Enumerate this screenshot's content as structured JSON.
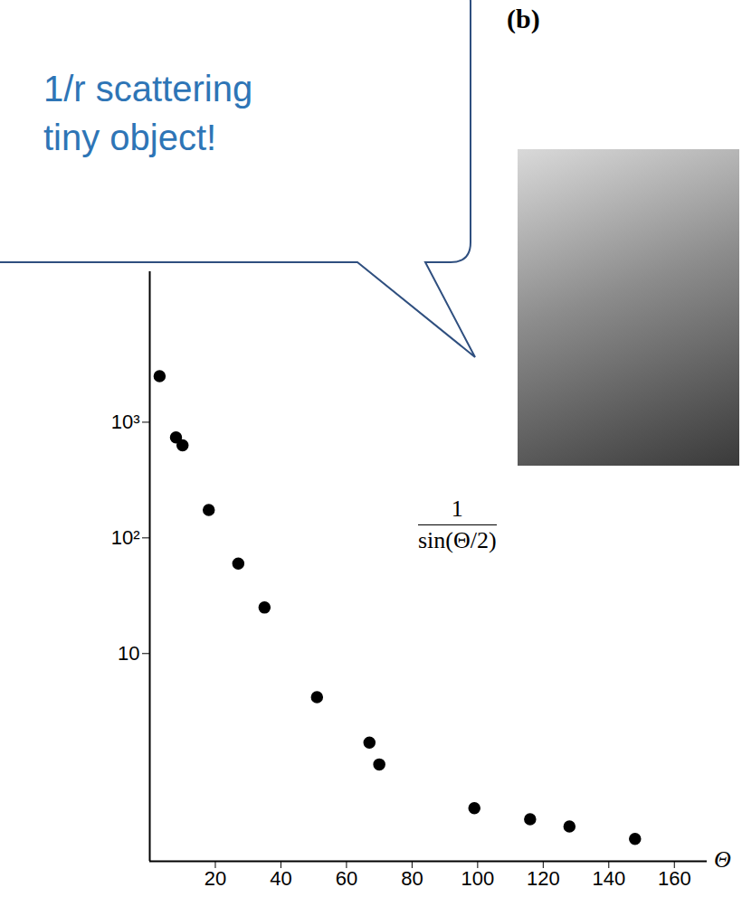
{
  "chart_data": {
    "type": "scatter",
    "panel_label": "(b)",
    "annotations": [
      "1/r scattering",
      "tiny object!"
    ],
    "formula": {
      "numerator": "1",
      "denominator": "sin(Θ/2)"
    },
    "xlabel": "Θ",
    "x": [
      3,
      8,
      10,
      18,
      27,
      35,
      51,
      67,
      70,
      99,
      116,
      128,
      148
    ],
    "values": [
      2500,
      740,
      630,
      174,
      60,
      25,
      4.2,
      1.7,
      1.1,
      0.46,
      0.37,
      0.32,
      0.25
    ],
    "color": "#000000",
    "marker": "circle",
    "log": "y",
    "grid": false,
    "xlim": [
      0,
      170
    ],
    "xticks": [
      20,
      40,
      60,
      80,
      100,
      120,
      140,
      160
    ],
    "ylim": [
      0.16,
      20000
    ],
    "yticks": [
      10,
      {
        "value": 100,
        "label": "10²"
      },
      {
        "value": 1000,
        "label": "10³"
      }
    ]
  }
}
